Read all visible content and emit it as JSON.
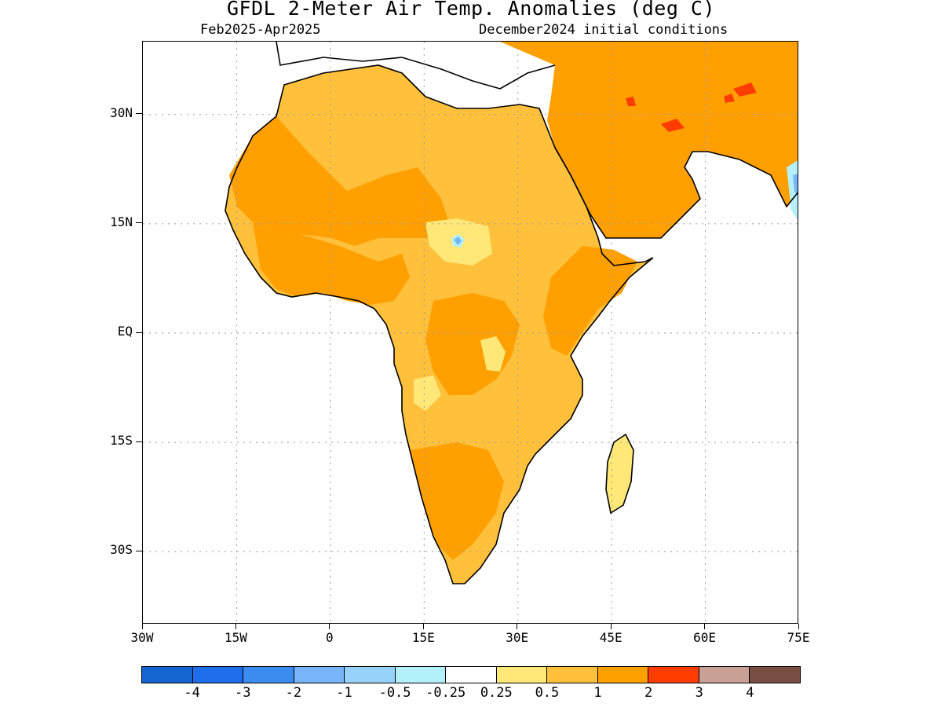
{
  "title": "GFDL 2-Meter Air Temp. Anomalies (deg C)",
  "subtitle_left": "Feb2025-Apr2025",
  "subtitle_right": "December2024 initial conditions",
  "lat_ticks": [
    {
      "label": "30N",
      "lat": 30
    },
    {
      "label": "15N",
      "lat": 15
    },
    {
      "label": "EQ",
      "lat": 0
    },
    {
      "label": "15S",
      "lat": -15
    },
    {
      "label": "30S",
      "lat": -30
    }
  ],
  "lon_ticks": [
    {
      "label": "30W",
      "lon": -30
    },
    {
      "label": "15W",
      "lon": -15
    },
    {
      "label": "0",
      "lon": 0
    },
    {
      "label": "15E",
      "lon": 15
    },
    {
      "label": "30E",
      "lon": 30
    },
    {
      "label": "45E",
      "lon": 45
    },
    {
      "label": "60E",
      "lon": 60
    },
    {
      "label": "75E",
      "lon": 75
    }
  ],
  "map_extent": {
    "lon_min": -30,
    "lon_max": 75,
    "lat_min": -40,
    "lat_max": 40
  },
  "colorbar": {
    "colors": [
      "#1464d2",
      "#1e6eeb",
      "#3c8cf0",
      "#78b4fa",
      "#96d2fa",
      "#b4f0fa",
      "#ffffff",
      "#ffe878",
      "#ffc03c",
      "#ffa000",
      "#ff3c00",
      "#c8a096",
      "#784e44"
    ],
    "labels": [
      "-4",
      "-3",
      "-2",
      "-1",
      "-0.5",
      "-0.25",
      "0.25",
      "0.5",
      "1",
      "2",
      "3",
      "4"
    ]
  },
  "legend_colors": {
    "land_dominant": "#ffc03c",
    "warm": "#ffa000",
    "hot_spot": "#ff3c00",
    "light": "#ffe878",
    "cool": "#b4f0fa",
    "cold": "#78b4fa"
  }
}
